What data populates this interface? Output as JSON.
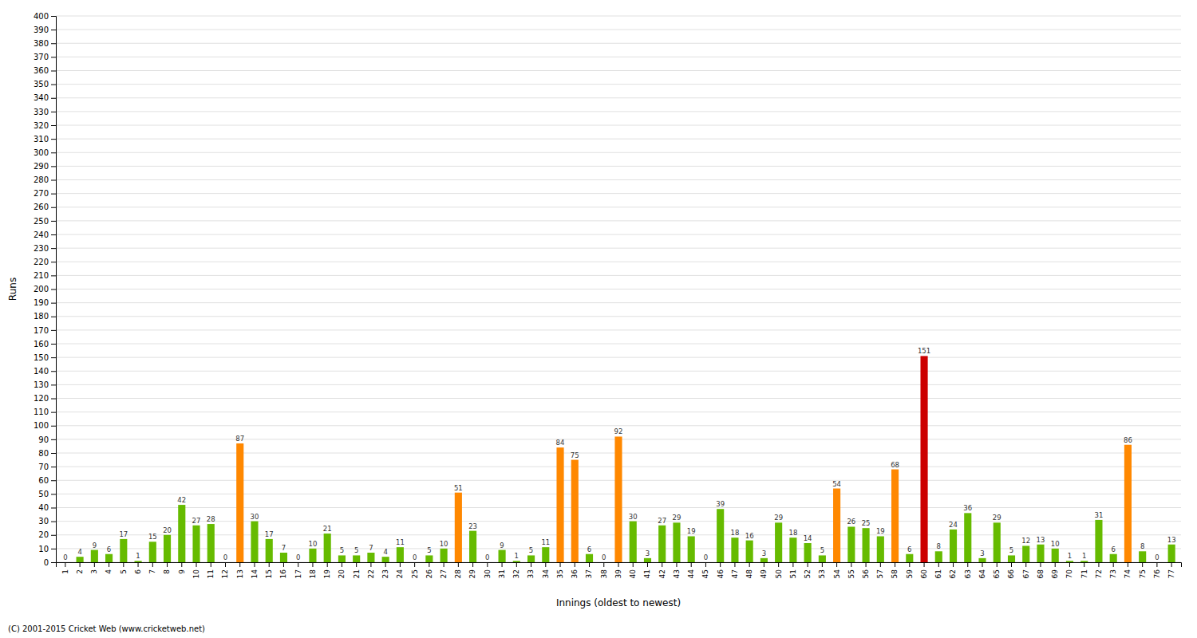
{
  "chart_data": {
    "type": "bar",
    "xlabel": "Innings (oldest to newest)",
    "ylabel": "Runs",
    "annotations": [
      "(C) 2001-2015 Cricket Web (www.cricketweb.net)"
    ],
    "categories": [
      "1",
      "2",
      "3",
      "4",
      "5",
      "6",
      "7",
      "8",
      "9",
      "10",
      "11",
      "12",
      "13",
      "14",
      "15",
      "16",
      "17",
      "18",
      "19",
      "20",
      "21",
      "22",
      "23",
      "24",
      "25",
      "26",
      "27",
      "28",
      "29",
      "30",
      "31",
      "32",
      "33",
      "34",
      "35",
      "36",
      "37",
      "38",
      "39",
      "40",
      "41",
      "42",
      "43",
      "44",
      "45",
      "46",
      "47",
      "48",
      "49",
      "50",
      "51",
      "52",
      "53",
      "54",
      "55",
      "56",
      "57",
      "58",
      "59",
      "60",
      "61",
      "62",
      "63",
      "64",
      "65",
      "66",
      "67",
      "68",
      "69",
      "70",
      "71",
      "72",
      "73",
      "74",
      "75",
      "76",
      "77"
    ],
    "values": [
      0,
      4,
      9,
      6,
      17,
      1,
      15,
      20,
      42,
      27,
      28,
      0,
      87,
      30,
      17,
      7,
      0,
      10,
      21,
      5,
      5,
      7,
      4,
      11,
      0,
      5,
      10,
      51,
      23,
      0,
      9,
      1,
      5,
      11,
      84,
      75,
      6,
      0,
      92,
      30,
      3,
      27,
      29,
      19,
      0,
      39,
      18,
      16,
      3,
      29,
      18,
      14,
      5,
      54,
      26,
      25,
      19,
      68,
      6,
      151,
      8,
      24,
      36,
      3,
      29,
      5,
      12,
      13,
      10,
      1,
      1,
      31,
      6,
      86,
      8,
      0,
      13
    ],
    "colors": [
      "#66bb00",
      "#66bb00",
      "#66bb00",
      "#66bb00",
      "#66bb00",
      "#66bb00",
      "#66bb00",
      "#66bb00",
      "#66bb00",
      "#66bb00",
      "#66bb00",
      "#66bb00",
      "#ff8800",
      "#66bb00",
      "#66bb00",
      "#66bb00",
      "#66bb00",
      "#66bb00",
      "#66bb00",
      "#66bb00",
      "#66bb00",
      "#66bb00",
      "#66bb00",
      "#66bb00",
      "#66bb00",
      "#66bb00",
      "#66bb00",
      "#ff8800",
      "#66bb00",
      "#66bb00",
      "#66bb00",
      "#66bb00",
      "#66bb00",
      "#66bb00",
      "#ff8800",
      "#ff8800",
      "#66bb00",
      "#66bb00",
      "#ff8800",
      "#66bb00",
      "#66bb00",
      "#66bb00",
      "#66bb00",
      "#66bb00",
      "#66bb00",
      "#66bb00",
      "#66bb00",
      "#66bb00",
      "#66bb00",
      "#66bb00",
      "#66bb00",
      "#66bb00",
      "#66bb00",
      "#ff8800",
      "#66bb00",
      "#66bb00",
      "#66bb00",
      "#ff8800",
      "#66bb00",
      "#cc0000",
      "#66bb00",
      "#66bb00",
      "#66bb00",
      "#66bb00",
      "#66bb00",
      "#66bb00",
      "#66bb00",
      "#66bb00",
      "#66bb00",
      "#66bb00",
      "#66bb00",
      "#66bb00",
      "#66bb00",
      "#ff8800",
      "#66bb00",
      "#66bb00",
      "#66bb00"
    ],
    "ylim": [
      0,
      400
    ],
    "yticks": [
      0,
      10,
      20,
      30,
      40,
      50,
      60,
      70,
      80,
      90,
      100,
      110,
      120,
      130,
      140,
      150,
      160,
      170,
      180,
      190,
      200,
      210,
      220,
      230,
      240,
      250,
      260,
      270,
      280,
      290,
      300,
      310,
      320,
      330,
      340,
      350,
      360,
      370,
      380,
      390,
      400
    ],
    "grid": true,
    "data_labels": true
  }
}
